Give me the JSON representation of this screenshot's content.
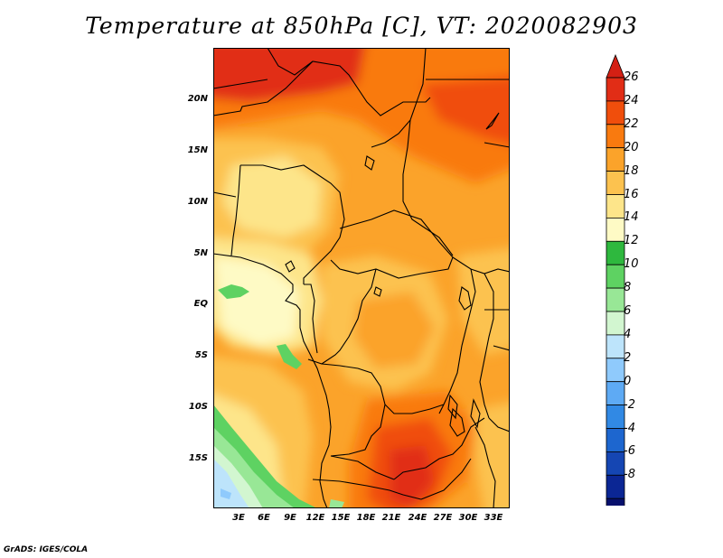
{
  "title": "Temperature at 850hPa [C], VT: 2020082903",
  "credit": "GrADS: IGES/COLA",
  "map": {
    "lat_labels": [
      "20N",
      "15N",
      "10N",
      "5N",
      "EQ",
      "5S",
      "10S",
      "15S"
    ],
    "lon_labels": [
      "3E",
      "6E",
      "9E",
      "12E",
      "15E",
      "18E",
      "21E",
      "24E",
      "27E",
      "30E",
      "33E"
    ]
  },
  "colorbar": {
    "labels": [
      "26",
      "24",
      "22",
      "20",
      "18",
      "16",
      "14",
      "12",
      "10",
      "8",
      "6",
      "4",
      "2",
      "0",
      "-2",
      "-4",
      "-6",
      "-8"
    ],
    "colors": [
      "#e12d16",
      "#f04e0c",
      "#f97a0f",
      "#fba32a",
      "#fcc24f",
      "#fde58a",
      "#fefac5",
      "#2eb83e",
      "#5ed262",
      "#98e796",
      "#d2f6d0",
      "#bde4fb",
      "#8fcafc",
      "#5eaaf4",
      "#3189e4",
      "#1d66cf",
      "#1546b3",
      "#0b2694",
      "#07106d"
    ],
    "over_color": "#d42014",
    "under_color": "#e6e2f9"
  }
}
